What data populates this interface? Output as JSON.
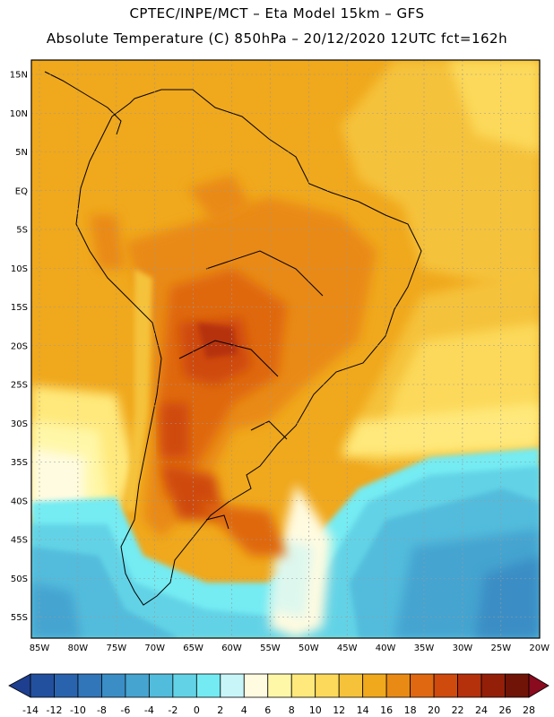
{
  "header": {
    "line1": "CPTEC/INPE/MCT –  Eta Model 15km – GFS",
    "line2": "Absolute Temperature (C) 850hPa – 20/12/2020 12UTC fct=162h"
  },
  "map": {
    "lat_labels": [
      "15N",
      "10N",
      "5N",
      "EQ",
      "5S",
      "10S",
      "15S",
      "20S",
      "25S",
      "30S",
      "35S",
      "40S",
      "45S",
      "50S",
      "55S"
    ],
    "lat_values": [
      15,
      10,
      5,
      0,
      -5,
      -10,
      -15,
      -20,
      -25,
      -30,
      -35,
      -40,
      -45,
      -50,
      -55
    ],
    "lon_labels": [
      "85W",
      "80W",
      "75W",
      "70W",
      "65W",
      "60W",
      "55W",
      "50W",
      "45W",
      "40W",
      "35W",
      "30W",
      "25W",
      "20W"
    ],
    "lon_values": [
      -85,
      -80,
      -75,
      -70,
      -65,
      -60,
      -55,
      -50,
      -45,
      -40,
      -35,
      -30,
      -25,
      -20
    ]
  },
  "colorbar": {
    "labels": [
      "-14",
      "-12",
      "-10",
      "-8",
      "-6",
      "-4",
      "-2",
      "0",
      "2",
      "4",
      "6",
      "8",
      "10",
      "12",
      "14",
      "16",
      "18",
      "20",
      "22",
      "24",
      "26",
      "28"
    ],
    "colors": [
      "#1e3f8f",
      "#23509e",
      "#2a63ad",
      "#3176b9",
      "#3a8ec5",
      "#45a4d0",
      "#52bcdc",
      "#62d3e6",
      "#74ebf2",
      "#c8f5f8",
      "#fffbe0",
      "#fff7a8",
      "#ffe97c",
      "#fcd95a",
      "#f5c23a",
      "#f0a81c",
      "#e98a14",
      "#df6810",
      "#cf4a0d",
      "#b5310b",
      "#941f08",
      "#6f1406",
      "#8a0a1e"
    ]
  }
}
